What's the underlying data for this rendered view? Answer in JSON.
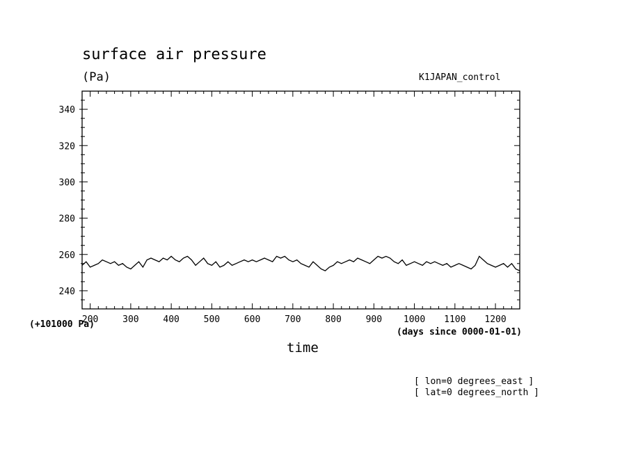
{
  "title": "surface air pressure",
  "units": "(Pa)",
  "case_name": "K1JAPAN_control",
  "y_offset_label": "(+101000 Pa)",
  "x_units_label": "(days since 0000-01-01)",
  "xlabel": "time",
  "annotations": [
    "[ lon=0 degrees_east ]",
    "[ lat=0 degrees_north ]"
  ],
  "chart_data": {
    "type": "line",
    "title": "surface air pressure",
    "xlabel": "time",
    "ylabel": "(Pa)",
    "xlim": [
      180,
      1260
    ],
    "ylim": [
      230,
      350
    ],
    "x_ticks": [
      200,
      300,
      400,
      500,
      600,
      700,
      800,
      900,
      1000,
      1100,
      1200
    ],
    "y_ticks": [
      240,
      260,
      280,
      300,
      320,
      340
    ],
    "grid": false,
    "series": [
      {
        "name": "",
        "color": "#000000",
        "x": [
          180,
          190,
          200,
          210,
          220,
          230,
          240,
          250,
          260,
          270,
          280,
          290,
          300,
          310,
          320,
          330,
          340,
          350,
          360,
          370,
          380,
          390,
          400,
          410,
          420,
          430,
          440,
          450,
          460,
          470,
          480,
          490,
          500,
          510,
          520,
          530,
          540,
          550,
          560,
          570,
          580,
          590,
          600,
          610,
          620,
          630,
          640,
          650,
          660,
          670,
          680,
          690,
          700,
          710,
          720,
          730,
          740,
          750,
          760,
          770,
          780,
          790,
          800,
          810,
          820,
          830,
          840,
          850,
          860,
          870,
          880,
          890,
          900,
          910,
          920,
          930,
          940,
          950,
          960,
          970,
          980,
          990,
          1000,
          1010,
          1020,
          1030,
          1040,
          1050,
          1060,
          1070,
          1080,
          1090,
          1100,
          1110,
          1120,
          1130,
          1140,
          1150,
          1160,
          1170,
          1180,
          1190,
          1200,
          1210,
          1220,
          1230,
          1240,
          1250,
          1260
        ],
        "y": [
          254,
          256,
          253,
          254,
          255,
          257,
          256,
          255,
          256,
          254,
          255,
          253,
          252,
          254,
          256,
          253,
          257,
          258,
          257,
          256,
          258,
          257,
          259,
          257,
          256,
          258,
          259,
          257,
          254,
          256,
          258,
          255,
          254,
          256,
          253,
          254,
          256,
          254,
          255,
          256,
          257,
          256,
          257,
          256,
          257,
          258,
          257,
          256,
          259,
          258,
          259,
          257,
          256,
          257,
          255,
          254,
          253,
          256,
          254,
          252,
          251,
          253,
          254,
          256,
          255,
          256,
          257,
          256,
          258,
          257,
          256,
          255,
          257,
          259,
          258,
          259,
          258,
          256,
          255,
          257,
          254,
          255,
          256,
          255,
          254,
          256,
          255,
          256,
          255,
          254,
          255,
          253,
          254,
          255,
          254,
          253,
          252,
          254,
          259,
          257,
          255,
          254,
          253,
          254,
          255,
          253,
          255,
          252,
          251
        ]
      }
    ]
  }
}
